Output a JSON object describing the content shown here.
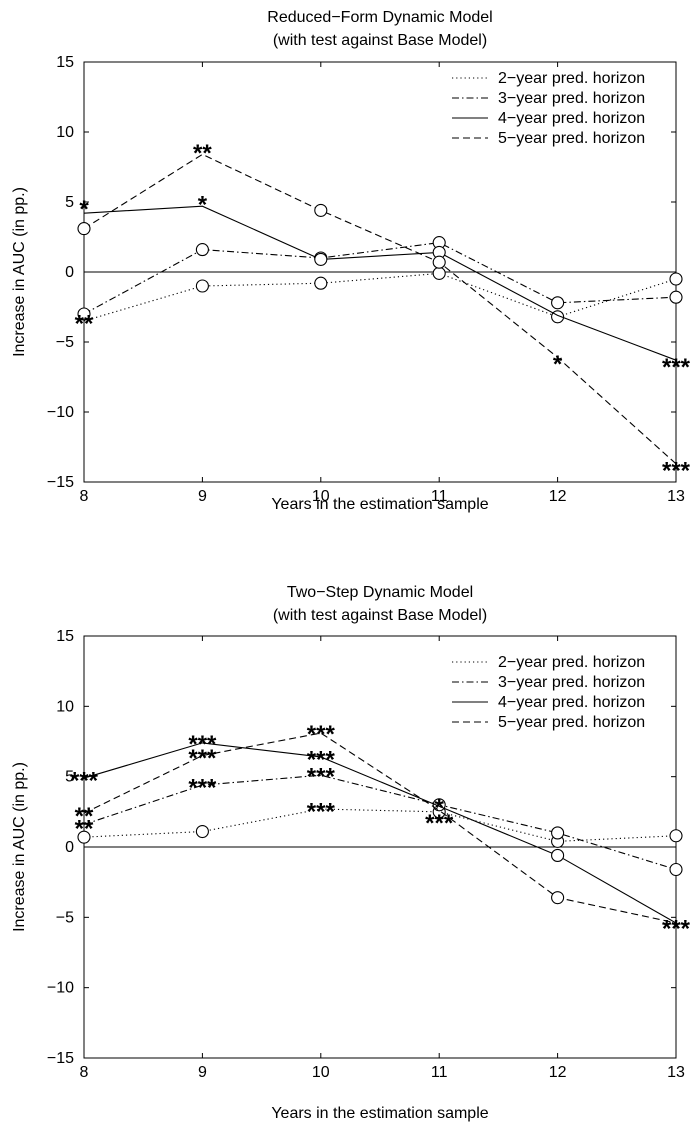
{
  "chart_data": [
    {
      "type": "line",
      "title": "Reduced−Form Dynamic Model",
      "subtitle": "(with test against Base Model)",
      "xlabel": "Years in the estimation sample",
      "ylabel": "Increase in AUC (in pp.)",
      "x": [
        8,
        9,
        10,
        11,
        12,
        13
      ],
      "x_ticks": [
        "8",
        "9",
        "10",
        "11",
        "12",
        "13"
      ],
      "y_ticks": [
        "15",
        "10",
        "5",
        "0",
        "−5",
        "−10",
        "−15"
      ],
      "xlim": [
        8,
        13
      ],
      "ylim": [
        -15,
        15
      ],
      "grid": false,
      "zero_line": true,
      "legend_position": "top-right",
      "series": [
        {
          "name": "2−year pred. horizon",
          "style": "dotted",
          "values": [
            -3.5,
            -1.0,
            -0.8,
            -0.1,
            -3.2,
            -0.5
          ],
          "markers": [
            false,
            true,
            true,
            true,
            true,
            true
          ]
        },
        {
          "name": "3−year pred. horizon",
          "style": "dashdot",
          "values": [
            -3.0,
            1.6,
            1.0,
            2.1,
            -2.2,
            -1.8
          ],
          "markers": [
            true,
            true,
            true,
            true,
            true,
            true
          ]
        },
        {
          "name": "4−year pred. horizon",
          "style": "solid",
          "values": [
            4.2,
            4.7,
            0.9,
            1.4,
            -3.1,
            -6.3
          ],
          "markers": [
            false,
            false,
            true,
            true,
            false,
            false
          ]
        },
        {
          "name": "5−year pred. horizon",
          "style": "dashed",
          "values": [
            3.1,
            8.4,
            4.4,
            0.7,
            -6.1,
            -13.7
          ],
          "markers": [
            true,
            false,
            true,
            true,
            false,
            false
          ]
        }
      ],
      "annotations": [
        {
          "text": "*",
          "x": 8,
          "y": 4.8
        },
        {
          "text": "**",
          "x": 8,
          "y": -3.4
        },
        {
          "text": "**",
          "x": 9,
          "y": 8.8
        },
        {
          "text": "*",
          "x": 9,
          "y": 5.1
        },
        {
          "text": "*",
          "x": 12,
          "y": -6.3
        },
        {
          "text": "***",
          "x": 13,
          "y": -6.5
        },
        {
          "text": "***",
          "x": 13,
          "y": -13.9
        }
      ]
    },
    {
      "type": "line",
      "title": "Two−Step Dynamic Model",
      "subtitle": "(with test against Base Model)",
      "xlabel": "Years in the estimation sample",
      "ylabel": "Increase in AUC (in pp.)",
      "x": [
        8,
        9,
        10,
        11,
        12,
        13
      ],
      "x_ticks": [
        "8",
        "9",
        "10",
        "11",
        "12",
        "13"
      ],
      "y_ticks": [
        "15",
        "10",
        "5",
        "0",
        "−5",
        "−10",
        "−15"
      ],
      "xlim": [
        8,
        13
      ],
      "ylim": [
        -15,
        15
      ],
      "grid": false,
      "zero_line": true,
      "legend_position": "top-right",
      "series": [
        {
          "name": "2−year pred. horizon",
          "style": "dotted",
          "values": [
            0.7,
            1.1,
            2.7,
            2.5,
            0.4,
            0.8
          ],
          "markers": [
            true,
            true,
            false,
            true,
            true,
            true
          ]
        },
        {
          "name": "3−year pred. horizon",
          "style": "dashdot",
          "values": [
            1.6,
            4.4,
            5.1,
            3.0,
            1.0,
            -1.6
          ],
          "markers": [
            false,
            false,
            false,
            true,
            true,
            true
          ]
        },
        {
          "name": "4−year pred. horizon",
          "style": "solid",
          "values": [
            4.9,
            7.4,
            6.4,
            2.9,
            -0.6,
            -5.4
          ],
          "markers": [
            false,
            false,
            false,
            false,
            true,
            false
          ]
        },
        {
          "name": "5−year pred. horizon",
          "style": "dashed",
          "values": [
            2.4,
            6.5,
            8.1,
            2.6,
            -3.6,
            -5.4
          ],
          "markers": [
            false,
            false,
            false,
            false,
            true,
            false
          ]
        }
      ],
      "annotations": [
        {
          "text": "***",
          "x": 8,
          "y": 5.0
        },
        {
          "text": "**",
          "x": 8,
          "y": 2.5
        },
        {
          "text": "**",
          "x": 8,
          "y": 1.6
        },
        {
          "text": "***",
          "x": 9,
          "y": 7.6
        },
        {
          "text": "***",
          "x": 9,
          "y": 6.6
        },
        {
          "text": "***",
          "x": 9,
          "y": 4.5
        },
        {
          "text": "***",
          "x": 10,
          "y": 8.3
        },
        {
          "text": "***",
          "x": 10,
          "y": 6.5
        },
        {
          "text": "***",
          "x": 10,
          "y": 5.3
        },
        {
          "text": "***",
          "x": 10,
          "y": 2.8
        },
        {
          "text": "*",
          "x": 11,
          "y": 3.1
        },
        {
          "text": "***",
          "x": 11,
          "y": 2.0
        },
        {
          "text": "***",
          "x": 13,
          "y": -5.5
        }
      ]
    }
  ]
}
